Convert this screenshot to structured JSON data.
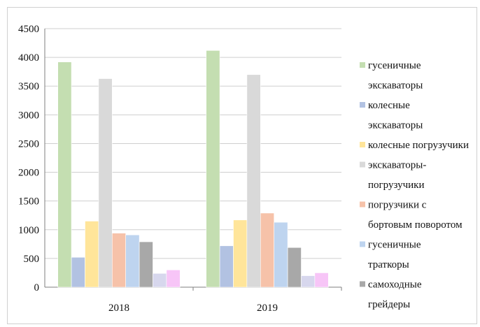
{
  "chart_data": {
    "type": "bar",
    "categories": [
      "2018",
      "2019"
    ],
    "ylim": [
      0,
      4500
    ],
    "yticks": [
      0,
      500,
      1000,
      1500,
      2000,
      2500,
      3000,
      3500,
      4000,
      4500
    ],
    "grid": "horizontal",
    "legend_position": "right",
    "series": [
      {
        "name": "гусеничные",
        "color": "#c4deb1",
        "values": [
          3920,
          4120
        ]
      },
      {
        "name": "экскаваторы колесные",
        "color": "#b2c2e2",
        "values": [
          520,
          720
        ]
      },
      {
        "name": "экскаваторы колесные погрузучики",
        "color": "#ffe59a",
        "values": [
          1150,
          1170
        ]
      },
      {
        "name": "экскаваторы-погрузучики",
        "color": "#d9d9d9",
        "values": [
          3630,
          3700
        ]
      },
      {
        "name": "погрузчики с бортовым поворотом",
        "color": "#f6c2a9",
        "values": [
          940,
          1290
        ]
      },
      {
        "name": "гусеничные траткоры",
        "color": "#bed4ef",
        "values": [
          910,
          1130
        ]
      },
      {
        "name": "самоходные грейдеры",
        "color": "#a8a8a8",
        "values": [
          790,
          690
        ]
      },
      {
        "name": "",
        "color": "#d7d7ed",
        "values": [
          240,
          200
        ]
      },
      {
        "name": "",
        "color": "#f7c5f7",
        "values": [
          300,
          250
        ]
      }
    ],
    "legend_lines": [
      {
        "marker": 0,
        "text": "гусеничные"
      },
      {
        "marker": null,
        "text": "экскаваторы"
      },
      {
        "marker": 1,
        "text": "колесные"
      },
      {
        "marker": null,
        "text": "экскаваторы"
      },
      {
        "marker": 2,
        "text": "колесные погрузучики"
      },
      {
        "marker": 3,
        "text": "экскаваторы-"
      },
      {
        "marker": null,
        "text": "погрузучики"
      },
      {
        "marker": 4,
        "text": "погрузчики с"
      },
      {
        "marker": null,
        "text": "бортовым поворотом"
      },
      {
        "marker": 5,
        "text": "гусеничные"
      },
      {
        "marker": null,
        "text": "траткоры"
      },
      {
        "marker": 6,
        "text": "самоходные"
      },
      {
        "marker": null,
        "text": "грейдеры"
      }
    ]
  }
}
